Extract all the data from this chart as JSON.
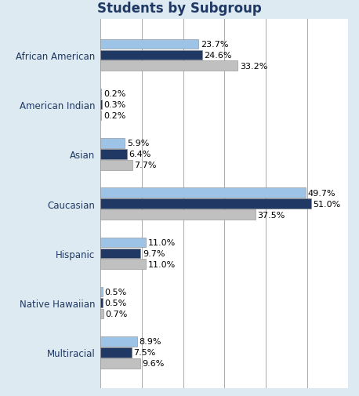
{
  "title": "Students by Subgroup",
  "categories": [
    "African American",
    "American Indian",
    "Asian",
    "Caucasian",
    "Hispanic",
    "Native Hawaiian",
    "Multiracial"
  ],
  "light_blue": [
    23.7,
    0.2,
    5.9,
    49.7,
    11.0,
    0.5,
    8.9
  ],
  "dark_blue": [
    24.6,
    0.3,
    6.4,
    51.0,
    9.7,
    0.5,
    7.5
  ],
  "grey": [
    33.2,
    0.2,
    7.7,
    37.5,
    11.0,
    0.7,
    9.6
  ],
  "light_blue_color": "#9DC3E6",
  "dark_blue_color": "#1F3864",
  "grey_color": "#C0C0C0",
  "title_bg_color": "#BDD7EE",
  "plot_bg_color": "#FFFFFF",
  "fig_bg_color": "#DEEAF1",
  "xlim": [
    0,
    60
  ],
  "bar_height": 0.22,
  "title_fontsize": 12,
  "category_fontsize": 8.5,
  "value_fontsize": 8
}
